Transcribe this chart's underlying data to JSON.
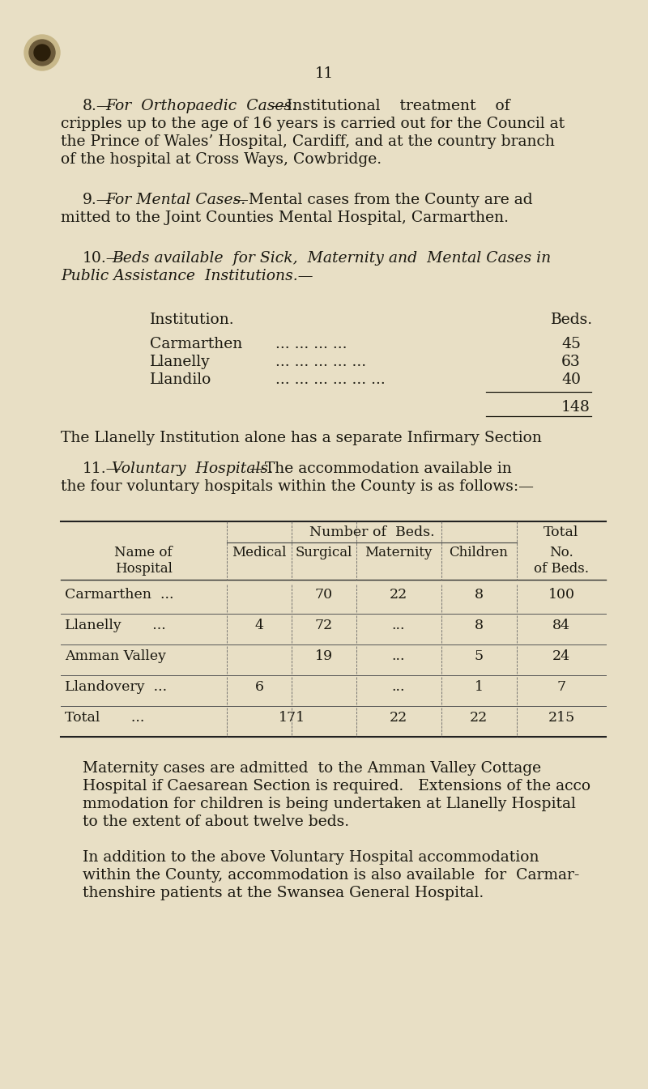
{
  "bg_color": "#e8dfc5",
  "text_color": "#1a1810",
  "page_number": "11",
  "para8_normal1": "8.—",
  "para8_italic": "For  Orthopaedic  Cases.",
  "para8_normal2": "—Institutional    treatment    of",
  "para8_lines": [
    "cripples up to the age of 16 years is carried out for the Council at",
    "the Prince of Wales’ Hospital, Cardiff, and at the country branch",
    "of the hospital at Cross Ways, Cowbridge."
  ],
  "para9_normal1": "9.—",
  "para9_italic": "For Mental Cases.",
  "para9_normal2": "—Mental cases from the County are ad",
  "para9_line2": "mitted to the Joint Counties Mental Hospital, Carmarthen.",
  "para10_normal1": "10.—",
  "para10_italic1": "Beds available  for Sick,  Maternity and  Mental Cases in",
  "para10_italic2": "Public Assistance  Institutions.—",
  "inst_header_left": "Institution.",
  "inst_header_right": "Beds.",
  "inst_rows": [
    [
      "Carmarthen",
      "... ... ... ...",
      "45"
    ],
    [
      "Llanelly",
      "... ... ... ... ...",
      "63"
    ],
    [
      "Llandilo",
      "... ... ... ... ... ...",
      "40"
    ]
  ],
  "inst_total": "148",
  "inst_note": "The Llanelly Institution alone has a separate Infirmary Section",
  "para11_normal1": "11.—",
  "para11_italic": "Voluntary  Hospitals.",
  "para11_normal2": "—The accommodation available in",
  "para11_line2": "the four voluntary hospitals within the County is as follows:—",
  "tbl_num_beds": "Number of  Beds.",
  "tbl_total_top": "Total",
  "tbl_col_names": [
    "Name of\nHospital",
    "Medical",
    "Surgical",
    "Maternity",
    "Children",
    "No.\nof Beds."
  ],
  "tbl_rows": [
    [
      "Carmarthen  ...",
      "",
      "70",
      "22",
      "8",
      "100"
    ],
    [
      "Llanelly       ...",
      "4",
      "72",
      "...",
      "8",
      "84"
    ],
    [
      "Amman Valley",
      "",
      "19",
      "...",
      "5",
      "24"
    ],
    [
      "Llandovery  ...",
      "6",
      "",
      "...",
      "1",
      "7"
    ]
  ],
  "tbl_total_row": [
    "Total       ...",
    "171",
    "22",
    "22",
    "215"
  ],
  "footer1_lines": [
    "Maternity cases are admitted  to the Amman Valley Cottage",
    "Hospital if Caesarean Section is required.   Extensions of the acco",
    "mmodation for children is being undertaken at Llanelly Hospital",
    "to the extent of about twelve beds."
  ],
  "footer2_lines": [
    "In addition to the above Voluntary Hospital accommodation",
    "within the County, accommodation is also available  for  Carmar-",
    "thenshire patients at the Swansea General Hospital."
  ]
}
